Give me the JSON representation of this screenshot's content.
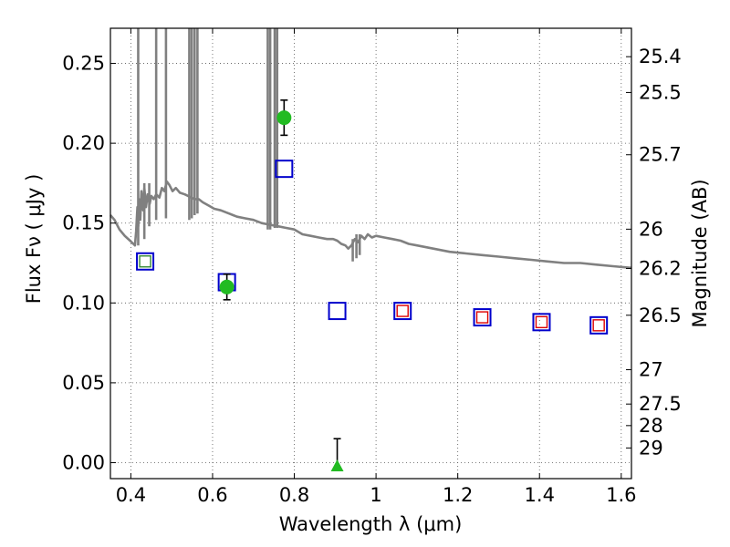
{
  "chart_data": {
    "type": "scatter",
    "title": "",
    "xlabel": "Wavelength  λ (μm)",
    "ylabel": "Flux  Fν  ( μJy )",
    "y2label": "Magnitude (AB)",
    "xlim": [
      0.35,
      1.625
    ],
    "ylim": [
      -0.01,
      0.272
    ],
    "grid": true,
    "x_ticks": [
      0.4,
      0.6,
      0.8,
      1.0,
      1.2,
      1.4,
      1.6
    ],
    "x_tick_labels": [
      "0.4",
      "0.6",
      "0.8",
      "1",
      "1.2",
      "1.4",
      "1.6"
    ],
    "y_ticks": [
      0.0,
      0.05,
      0.1,
      0.15,
      0.2,
      0.25
    ],
    "y_tick_labels": [
      "0.00",
      "0.05",
      "0.10",
      "0.15",
      "0.20",
      "0.25"
    ],
    "y2_tick_labels": [
      {
        "label": "25.4",
        "flux": 0.2542
      },
      {
        "label": "25.5",
        "flux": 0.2318
      },
      {
        "label": "25.7",
        "flux": 0.1928
      },
      {
        "label": "26",
        "flux": 0.1462
      },
      {
        "label": "26.2",
        "flux": 0.1216
      },
      {
        "label": "26.5",
        "flux": 0.0923
      },
      {
        "label": "27",
        "flux": 0.0582
      },
      {
        "label": "27.5",
        "flux": 0.0367
      },
      {
        "label": "28",
        "flux": 0.0232
      },
      {
        "label": "29",
        "flux": 0.0092
      }
    ],
    "colors": {
      "model_line": "#808080",
      "model_squares": "#0000cc",
      "observed_squares": "#dd0000",
      "inner_square_green": "#338833",
      "detections": "#22bb22",
      "errorbars": "#000000",
      "grid": "#555555"
    },
    "series": [
      {
        "kind": "line",
        "points": [
          [
            0.35,
            0.155
          ],
          [
            0.36,
            0.152
          ],
          [
            0.372,
            0.146
          ],
          [
            0.385,
            0.142
          ],
          [
            0.398,
            0.139
          ],
          [
            0.41,
            0.136
          ],
          [
            0.413,
            0.145
          ],
          [
            0.416,
            0.16
          ],
          [
            0.418,
            0.148
          ],
          [
            0.42,
            0.165
          ],
          [
            0.423,
            0.152
          ],
          [
            0.426,
            0.17
          ],
          [
            0.43,
            0.158
          ],
          [
            0.433,
            0.172
          ],
          [
            0.437,
            0.16
          ],
          [
            0.441,
            0.168
          ],
          [
            0.446,
            0.162
          ],
          [
            0.45,
            0.167
          ],
          [
            0.456,
            0.165
          ],
          [
            0.462,
            0.168
          ],
          [
            0.47,
            0.166
          ],
          [
            0.476,
            0.172
          ],
          [
            0.482,
            0.17
          ],
          [
            0.488,
            0.176
          ],
          [
            0.494,
            0.174
          ],
          [
            0.502,
            0.17
          ],
          [
            0.51,
            0.172
          ],
          [
            0.52,
            0.169
          ],
          [
            0.532,
            0.168
          ],
          [
            0.54,
            0.167
          ],
          [
            0.548,
            0.166
          ],
          [
            0.556,
            0.165
          ],
          [
            0.566,
            0.165
          ],
          [
            0.576,
            0.163
          ],
          [
            0.59,
            0.161
          ],
          [
            0.604,
            0.159
          ],
          [
            0.62,
            0.158
          ],
          [
            0.64,
            0.156
          ],
          [
            0.66,
            0.154
          ],
          [
            0.68,
            0.153
          ],
          [
            0.7,
            0.152
          ],
          [
            0.72,
            0.15
          ],
          [
            0.74,
            0.149
          ],
          [
            0.76,
            0.148
          ],
          [
            0.78,
            0.147
          ],
          [
            0.8,
            0.146
          ],
          [
            0.82,
            0.143
          ],
          [
            0.84,
            0.142
          ],
          [
            0.86,
            0.141
          ],
          [
            0.88,
            0.14
          ],
          [
            0.895,
            0.14
          ],
          [
            0.905,
            0.139
          ],
          [
            0.915,
            0.137
          ],
          [
            0.925,
            0.136
          ],
          [
            0.932,
            0.134
          ],
          [
            0.94,
            0.136
          ],
          [
            0.948,
            0.14
          ],
          [
            0.956,
            0.138
          ],
          [
            0.964,
            0.142
          ],
          [
            0.972,
            0.14
          ],
          [
            0.98,
            0.143
          ],
          [
            0.99,
            0.141
          ],
          [
            1.0,
            0.142
          ],
          [
            1.02,
            0.141
          ],
          [
            1.04,
            0.14
          ],
          [
            1.06,
            0.139
          ],
          [
            1.08,
            0.137
          ],
          [
            1.1,
            0.136
          ],
          [
            1.14,
            0.134
          ],
          [
            1.18,
            0.132
          ],
          [
            1.22,
            0.131
          ],
          [
            1.26,
            0.13
          ],
          [
            1.3,
            0.129
          ],
          [
            1.34,
            0.128
          ],
          [
            1.38,
            0.127
          ],
          [
            1.42,
            0.126
          ],
          [
            1.46,
            0.125
          ],
          [
            1.5,
            0.125
          ],
          [
            1.54,
            0.124
          ],
          [
            1.58,
            0.123
          ],
          [
            1.625,
            0.122
          ]
        ],
        "spikes": [
          {
            "x": 0.418,
            "y_min": 0.136,
            "y_max": 0.272
          },
          {
            "x": 0.433,
            "y_min": 0.14,
            "y_max": 0.175
          },
          {
            "x": 0.445,
            "y_min": 0.148,
            "y_max": 0.175
          },
          {
            "x": 0.462,
            "y_min": 0.152,
            "y_max": 0.272
          },
          {
            "x": 0.486,
            "y_min": 0.153,
            "y_max": 0.272
          },
          {
            "x": 0.543,
            "y_min": 0.152,
            "y_max": 0.272
          },
          {
            "x": 0.549,
            "y_min": 0.153,
            "y_max": 0.272
          },
          {
            "x": 0.556,
            "y_min": 0.155,
            "y_max": 0.272
          },
          {
            "x": 0.563,
            "y_min": 0.156,
            "y_max": 0.272
          },
          {
            "x": 0.735,
            "y_min": 0.146,
            "y_max": 0.272
          },
          {
            "x": 0.741,
            "y_min": 0.146,
            "y_max": 0.272
          },
          {
            "x": 0.752,
            "y_min": 0.147,
            "y_max": 0.272
          },
          {
            "x": 0.758,
            "y_min": 0.147,
            "y_max": 0.272
          },
          {
            "x": 0.943,
            "y_min": 0.126,
            "y_max": 0.14
          },
          {
            "x": 0.952,
            "y_min": 0.128,
            "y_max": 0.143
          },
          {
            "x": 0.96,
            "y_min": 0.13,
            "y_max": 0.143
          }
        ]
      },
      {
        "kind": "model_squares",
        "points": [
          [
            0.435,
            0.126
          ],
          [
            0.635,
            0.113
          ],
          [
            0.775,
            0.184
          ],
          [
            0.905,
            0.095
          ],
          [
            1.065,
            0.095
          ],
          [
            1.26,
            0.091
          ],
          [
            1.405,
            0.088
          ],
          [
            1.545,
            0.086
          ]
        ]
      },
      {
        "kind": "observed_squares",
        "points": [
          [
            1.065,
            0.095
          ],
          [
            1.26,
            0.091
          ],
          [
            1.405,
            0.088
          ],
          [
            1.545,
            0.086
          ]
        ]
      },
      {
        "kind": "inner_square_green",
        "points": [
          [
            0.435,
            0.126
          ]
        ]
      },
      {
        "kind": "detections",
        "points": [
          {
            "x": 0.635,
            "y": 0.11,
            "err_low": 0.008,
            "err_high": 0.008
          },
          {
            "x": 0.775,
            "y": 0.216,
            "err_low": 0.011,
            "err_high": 0.011
          }
        ]
      },
      {
        "kind": "upper_limits",
        "points": [
          {
            "x": 0.905,
            "y": -0.002,
            "err_low": 0.0,
            "err_high": 0.017
          }
        ]
      }
    ]
  }
}
